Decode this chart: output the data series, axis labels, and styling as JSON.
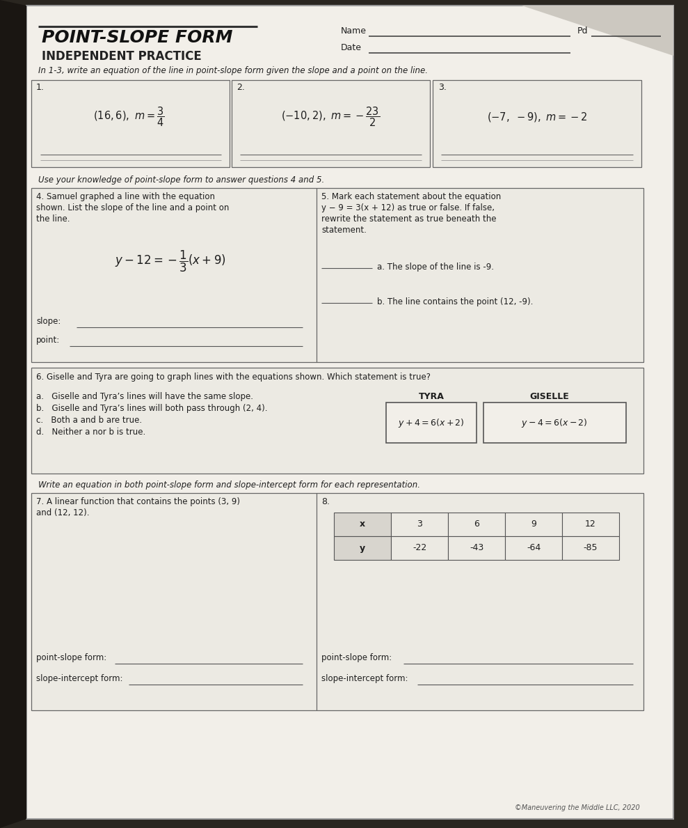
{
  "title_line1": "POINT-SLOPE FORM",
  "title_line2": "INDEPENDENT PRACTICE",
  "name_label": "Name",
  "pd_label": "Pd",
  "date_label": "Date",
  "instructions_1_3": "In 1-3, write an equation of the line in point-slope form given the slope and a point on the line.",
  "box1_num": "1.",
  "box2_num": "2.",
  "box3_num": "3.",
  "instructions_4_5": "Use your knowledge of point-slope form to answer questions 4 and 5.",
  "q4_line1": "4. Samuel graphed a line with the equation",
  "q4_line2": "shown. List the slope of the line and a point on",
  "q4_line3": "the line.",
  "q4_slope_label": "slope:",
  "q4_point_label": "point:",
  "q5_line1": "5. Mark each statement about the equation",
  "q5_line2": "y − 9 = 3(x + 12) as true or false. If false,",
  "q5_line3": "rewrite the statement as true beneath the",
  "q5_line4": "statement.",
  "q5a": "a. The slope of the line is -9.",
  "q5b": "b. The line contains the point (12, -9).",
  "q6_title": "6. Giselle and Tyra are going to graph lines with the equations shown. Which statement is true?",
  "q6a": "a.   Giselle and Tyra’s lines will have the same slope.",
  "q6b": "b.   Giselle and Tyra’s lines will both pass through (2, 4).",
  "q6c": "c.   Both a and b are true.",
  "q6d": "d.   Neither a nor b is true.",
  "tyra_label": "TYRA",
  "giselle_label": "GISELLE",
  "write_instructions": "Write an equation in both point-slope form and slope-intercept form for each representation.",
  "q7_line1": "7. A linear function that contains the points (3, 9)",
  "q7_line2": "and (12, 12).",
  "q8_label": "8.",
  "table_x_label": "x",
  "table_y_label": "y",
  "table_x_vals": [
    "3",
    "6",
    "9",
    "12"
  ],
  "table_y_vals": [
    "-22",
    "-43",
    "-64",
    "-85"
  ],
  "ps_form_label": "point-slope form:",
  "si_form_label": "slope-intercept form:",
  "copyright": "©Maneuvering the Middle LLC, 2020",
  "bg_color": "#2a2620",
  "paper_color": "#f2efe9",
  "inner_color": "#eceae3",
  "box_bg": "#e8e5de",
  "line_color": "#555555",
  "title_color": "#1a1a1a",
  "text_color": "#1e1e1e",
  "dark_line": "#333333"
}
